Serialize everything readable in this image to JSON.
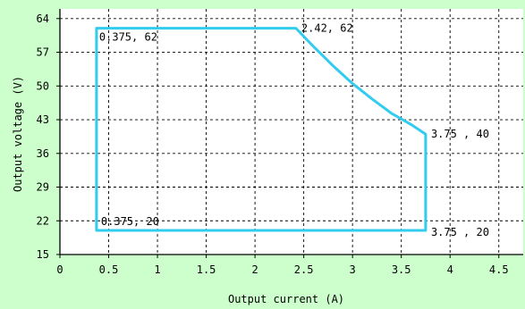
{
  "chart_data": {
    "type": "line",
    "xlabel": "Output current (A)",
    "ylabel": "Output voltage (V)",
    "xlim": [
      0,
      4.75
    ],
    "ylim": [
      15,
      66
    ],
    "x_ticks": [
      {
        "value": 0,
        "label": "0"
      },
      {
        "value": 0.5,
        "label": "0.5"
      },
      {
        "value": 1,
        "label": "1"
      },
      {
        "value": 1.5,
        "label": "1.5"
      },
      {
        "value": 2,
        "label": "2"
      },
      {
        "value": 2.5,
        "label": "2.5"
      },
      {
        "value": 3,
        "label": "3"
      },
      {
        "value": 3.5,
        "label": "3.5"
      },
      {
        "value": 4,
        "label": "4"
      },
      {
        "value": 4.5,
        "label": "4.5"
      }
    ],
    "y_ticks": [
      {
        "value": 15,
        "label": "15"
      },
      {
        "value": 22,
        "label": "22"
      },
      {
        "value": 29,
        "label": "29"
      },
      {
        "value": 36,
        "label": "36"
      },
      {
        "value": 43,
        "label": "43"
      },
      {
        "value": 50,
        "label": "50"
      },
      {
        "value": 57,
        "label": "57"
      },
      {
        "value": 64,
        "label": "64"
      }
    ],
    "grid": true,
    "grid_style": "dashed",
    "series": [
      {
        "color": "#33ccee",
        "x": [
          0.375,
          2.42,
          2.6,
          2.8,
          3.0,
          3.2,
          3.4,
          3.6,
          3.75,
          3.75,
          0.375,
          0.375
        ],
        "y": [
          62,
          62,
          58.2,
          54.2,
          50.5,
          47.3,
          44.3,
          42.0,
          40,
          20,
          20,
          62
        ]
      }
    ],
    "annotations": [
      {
        "text": "0.375, 62",
        "x": 0.375,
        "y": 62
      },
      {
        "text": "2.42, 62",
        "x": 2.42,
        "y": 62
      },
      {
        "text": "3.75 , 40",
        "x": 3.75,
        "y": 40
      },
      {
        "text": "0.375, 20",
        "x": 0.375,
        "y": 20
      },
      {
        "text": "3.75 , 20",
        "x": 3.75,
        "y": 20
      }
    ],
    "colors": {
      "background": "#ccffcc",
      "plot_background": "#ffffff",
      "axis": "#000000",
      "grid": "#000000"
    }
  }
}
